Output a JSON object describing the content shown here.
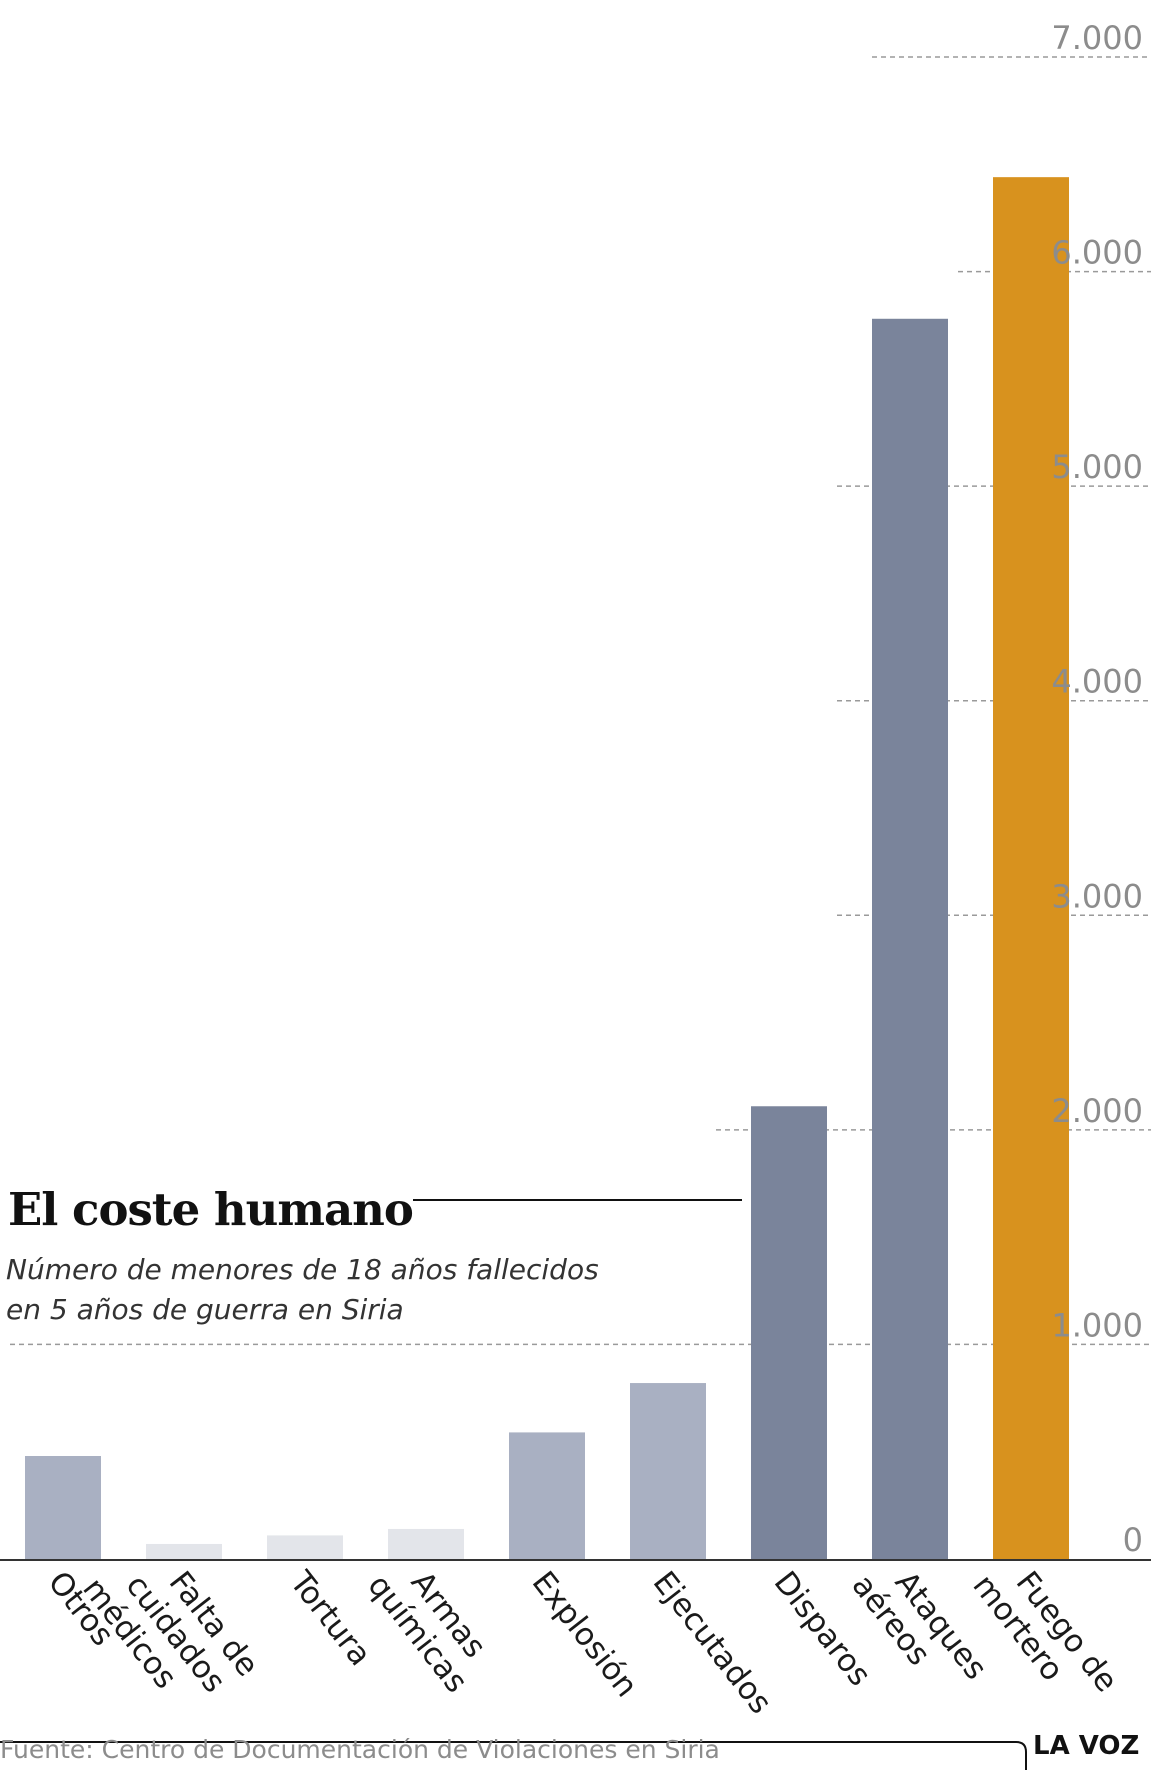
{
  "title": "El coste humano",
  "subtitle_lines": [
    "Número de menores de 18 años fallecidos",
    "en 5 años de guerra en Siria"
  ],
  "source": "Fuente: Centro de Documentación de Violaciones en Siria",
  "brand": "LA VOZ",
  "colors": {
    "light": "#e3e5ea",
    "medium": "#a9b0c2",
    "dark": "#7a849b",
    "highlight": "#d8921e",
    "text": "#111111",
    "axis_text": "#8c8c8c"
  },
  "chart_data": {
    "type": "bar",
    "title": "El coste humano",
    "categories": [
      [
        "Otros"
      ],
      [
        "Falta de",
        "cuidados",
        "médicos"
      ],
      [
        "Tortura"
      ],
      [
        "Armas",
        "químicas"
      ],
      [
        "Explosión"
      ],
      [
        "Ejecutados"
      ],
      [
        "Disparos"
      ],
      [
        "Ataques",
        "aéreos"
      ],
      [
        "Fuego de",
        "mortero"
      ]
    ],
    "values": [
      480,
      70,
      110,
      140,
      590,
      820,
      2110,
      5780,
      6440
    ],
    "bar_colors": [
      "medium",
      "light",
      "light",
      "light",
      "medium",
      "medium",
      "dark",
      "dark",
      "highlight"
    ],
    "ylim": [
      0,
      7000
    ],
    "yticks": [
      0,
      1000,
      2000,
      3000,
      4000,
      5000,
      6000,
      7000
    ],
    "ytick_labels": [
      "0",
      "1.000",
      "2.000",
      "3.000",
      "4.000",
      "5.000",
      "6.000",
      "7.000"
    ],
    "grid": true,
    "xlabel": "",
    "ylabel": ""
  }
}
